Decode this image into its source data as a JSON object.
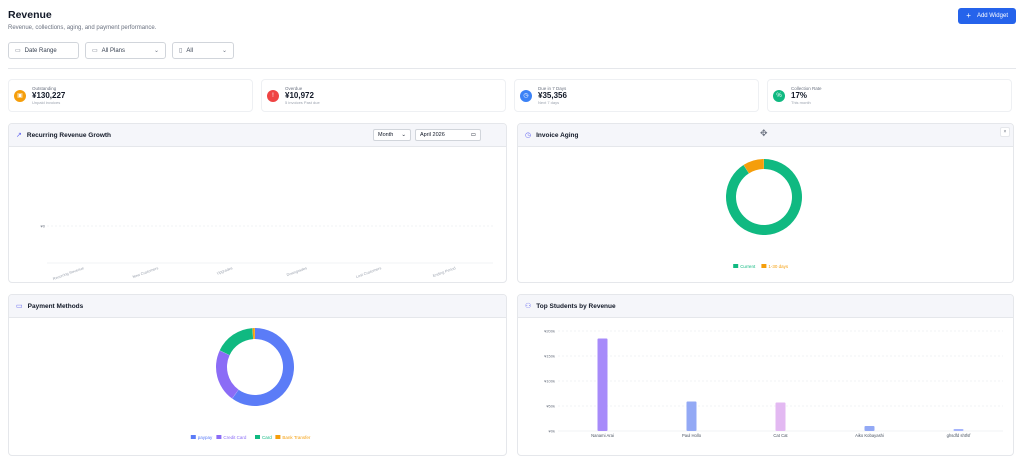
{
  "header": {
    "title": "Revenue",
    "subtitle": "Revenue, collections, aging, and payment performance.",
    "add_widget_label": "Add Widget"
  },
  "filters": {
    "date_range": "Date Range",
    "plans": "All Plans",
    "status": "All"
  },
  "stats": [
    {
      "label": "Outstanding",
      "value": "¥130,227",
      "sub": "Unpaid invoices",
      "color": "#f59e0b",
      "icon": "wallet-icon"
    },
    {
      "label": "Overdue",
      "value": "¥10,972",
      "sub": "5 invoices Past due",
      "color": "#ef4444",
      "icon": "alert-icon"
    },
    {
      "label": "Due in 7 Days",
      "value": "¥35,356",
      "sub": "Next 7 days",
      "color": "#3b82f6",
      "icon": "clock-icon"
    },
    {
      "label": "Collection Rate",
      "value": "17%",
      "sub": "This month",
      "color": "#10b981",
      "icon": "percent-icon"
    }
  ],
  "widgets": {
    "recurring": {
      "title": "Recurring Revenue Growth",
      "period": "Month",
      "month": "April 2026"
    },
    "aging": {
      "title": "Invoice Aging"
    },
    "payment": {
      "title": "Payment Methods"
    },
    "students": {
      "title": "Top Students by Revenue"
    }
  },
  "chart_data": [
    {
      "type": "bar",
      "title": "Recurring Revenue Growth",
      "categories": [
        "Recurring Revenue",
        "New Customers",
        "Upgrades",
        "Downgrades",
        "Lost Customers",
        "Ending Period"
      ],
      "values": [
        0,
        0,
        0,
        0,
        0,
        0
      ],
      "ytick_labels": [
        "¥0"
      ],
      "grid": true
    },
    {
      "type": "pie",
      "title": "Invoice Aging",
      "categories": [
        "Current",
        "1-30 days"
      ],
      "values": [
        91,
        9
      ],
      "colors": [
        "#10b981",
        "#f59e0b"
      ],
      "legend": "bottom"
    },
    {
      "type": "pie",
      "title": "Payment Methods",
      "categories": [
        "paypay",
        "Credit Card",
        "Card",
        "Bank Transfer"
      ],
      "values": [
        60,
        22,
        17,
        1
      ],
      "colors": [
        "#5b7cf7",
        "#8b6cf6",
        "#10b981",
        "#f59e0b"
      ],
      "legend": "bottom"
    },
    {
      "type": "bar",
      "title": "Top Students by Revenue",
      "categories": [
        "Nanami Arai",
        "Paul Hollo",
        "Cat Cat",
        "Aiko Kobayashi",
        "ghsdfd shtfsf"
      ],
      "values": [
        185000,
        59000,
        57000,
        10000,
        4000
      ],
      "ytick_labels": [
        "¥0k",
        "¥50k",
        "¥100k",
        "¥150k",
        "¥200k"
      ],
      "ylim": [
        0,
        200000
      ],
      "colors": [
        "#a78bfa",
        "#93a9f5",
        "#e3b9f2",
        "#93a9f5",
        "#a5b4fc"
      ],
      "grid": true
    }
  ]
}
